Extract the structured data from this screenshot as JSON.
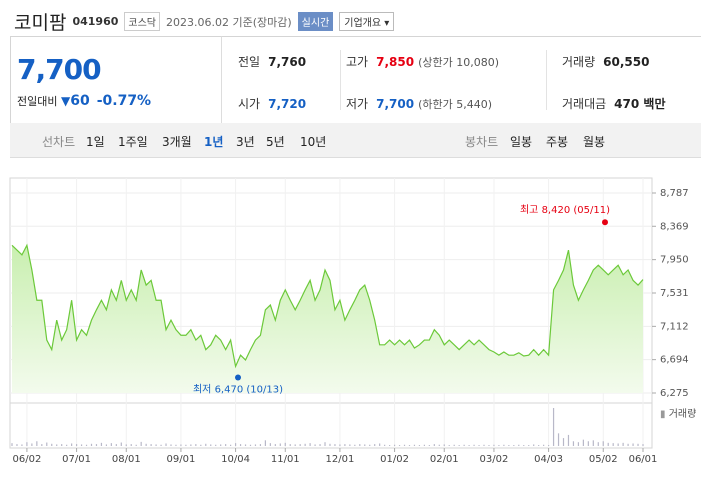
{
  "header": {
    "name": "코미팜",
    "code": "041960",
    "market": "코스닥",
    "date": "2023.06.02 기준(장마감)",
    "realtime": "실시간",
    "company": "기업개요"
  },
  "price": {
    "current": "7,700",
    "change_label": "전일대비",
    "change": "60",
    "rate": "-0.77%"
  },
  "stats": [
    {
      "label": "전일",
      "value": "7,760"
    },
    {
      "label": "고가",
      "value": "7,850",
      "extra": "(상한가 10,080)"
    },
    {
      "label": "거래량",
      "value": "60,550"
    },
    {
      "label": "시가",
      "value": "7,720"
    },
    {
      "label": "저가",
      "value": "7,700",
      "extra": "(하한가 5,440)"
    },
    {
      "label": "거래대금",
      "value": "470 백만"
    }
  ],
  "tabs": {
    "line_label": "선차트",
    "line": [
      "1일",
      "1주일",
      "3개월",
      "1년",
      "3년",
      "5년",
      "10년"
    ],
    "selected": "1년",
    "candle_label": "봉차트",
    "candle": [
      "일봉",
      "주봉",
      "월봉"
    ]
  },
  "chart_data": {
    "type": "line",
    "color": "#6cc93a",
    "grid": true,
    "categories": [
      null,
      null,
      null,
      "06/02",
      null,
      null,
      null,
      null,
      null,
      null,
      null,
      null,
      null,
      "07/01",
      null,
      null,
      null,
      null,
      null,
      null,
      null,
      null,
      null,
      "08/01",
      null,
      null,
      null,
      null,
      null,
      null,
      null,
      null,
      null,
      null,
      "09/01",
      null,
      null,
      null,
      null,
      null,
      null,
      null,
      null,
      null,
      null,
      "10/04",
      null,
      null,
      null,
      null,
      null,
      null,
      null,
      null,
      null,
      "11/01",
      null,
      null,
      null,
      null,
      null,
      null,
      null,
      null,
      null,
      null,
      "12/01",
      null,
      null,
      null,
      null,
      null,
      null,
      null,
      null,
      null,
      null,
      "01/02",
      null,
      null,
      null,
      null,
      null,
      null,
      null,
      null,
      null,
      "02/01",
      null,
      null,
      null,
      null,
      null,
      null,
      null,
      null,
      null,
      "03/02",
      null,
      null,
      null,
      null,
      null,
      null,
      null,
      null,
      null,
      null,
      "04/03",
      null,
      null,
      null,
      null,
      null,
      null,
      null,
      null,
      null,
      null,
      "05/02",
      null,
      null,
      null,
      null,
      null,
      null,
      null,
      "06/01"
    ],
    "values": [
      8130,
      8070,
      8010,
      8130,
      7820,
      7440,
      7440,
      6940,
      6820,
      7190,
      6940,
      7070,
      7440,
      6940,
      7070,
      7000,
      7190,
      7320,
      7440,
      7320,
      7570,
      7440,
      7690,
      7440,
      7570,
      7440,
      7820,
      7630,
      7690,
      7440,
      7440,
      7070,
      7190,
      7070,
      7000,
      7000,
      7070,
      6940,
      7000,
      6820,
      6880,
      7000,
      6940,
      6820,
      6940,
      6610,
      6750,
      6690,
      6820,
      6940,
      7000,
      7320,
      7380,
      7190,
      7440,
      7570,
      7440,
      7320,
      7440,
      7570,
      7690,
      7440,
      7570,
      7820,
      7690,
      7320,
      7440,
      7190,
      7320,
      7440,
      7570,
      7630,
      7440,
      7190,
      6880,
      6880,
      6940,
      6880,
      6940,
      6880,
      6940,
      6840,
      6880,
      6940,
      6940,
      7070,
      7000,
      6880,
      6940,
      6880,
      6820,
      6880,
      6940,
      6880,
      6940,
      6880,
      6820,
      6790,
      6750,
      6790,
      6750,
      6750,
      6780,
      6740,
      6750,
      6820,
      6750,
      6820,
      6750,
      7570,
      7690,
      7820,
      8070,
      7630,
      7440,
      7570,
      7690,
      7820,
      7880,
      7820,
      7760,
      7820,
      7880,
      7760,
      7820,
      7690,
      7630,
      7700
    ],
    "ylim": [
      6275,
      8787
    ],
    "yticks": [
      {
        "value": 6275,
        "label": "6,275"
      },
      {
        "value": 6694,
        "label": "6,694"
      },
      {
        "value": 7112,
        "label": "7,112"
      },
      {
        "value": 7531,
        "label": "7,531"
      },
      {
        "value": 7950,
        "label": "7,950"
      },
      {
        "value": 8369,
        "label": "8,369"
      },
      {
        "value": 8787,
        "label": "8,787"
      }
    ],
    "annotations": [
      {
        "label": "최고 8,420 (05/11)",
        "value": 8420,
        "color": "#e60012"
      },
      {
        "label": "최저 6,470 (10/13)",
        "value": 6470,
        "color": "#1560c4"
      }
    ],
    "volume": {
      "name": "거래량",
      "color": "#b8b8c8",
      "values": [
        90000,
        60000,
        50000,
        120000,
        80000,
        150000,
        60000,
        110000,
        70000,
        50000,
        60000,
        40000,
        80000,
        60000,
        50000,
        40000,
        70000,
        60000,
        100000,
        50000,
        90000,
        60000,
        110000,
        50000,
        60000,
        40000,
        130000,
        70000,
        60000,
        50000,
        40000,
        80000,
        50000,
        40000,
        50000,
        40000,
        50000,
        60000,
        40000,
        70000,
        50000,
        40000,
        50000,
        60000,
        40000,
        90000,
        60000,
        50000,
        40000,
        50000,
        60000,
        180000,
        90000,
        60000,
        80000,
        100000,
        60000,
        50000,
        60000,
        70000,
        90000,
        50000,
        60000,
        120000,
        70000,
        60000,
        50000,
        60000,
        50000,
        40000,
        60000,
        50000,
        40000,
        60000,
        80000,
        40000,
        30000,
        40000,
        30000,
        40000,
        30000,
        40000,
        30000,
        40000,
        30000,
        60000,
        40000,
        50000,
        30000,
        40000,
        30000,
        40000,
        30000,
        40000,
        30000,
        40000,
        30000,
        40000,
        30000,
        40000,
        30000,
        30000,
        40000,
        30000,
        30000,
        50000,
        30000,
        40000,
        30000,
        1200000,
        400000,
        250000,
        350000,
        150000,
        120000,
        200000,
        150000,
        180000,
        120000,
        150000,
        100000,
        90000,
        80000,
        100000,
        70000,
        80000,
        70000,
        60550
      ]
    }
  }
}
